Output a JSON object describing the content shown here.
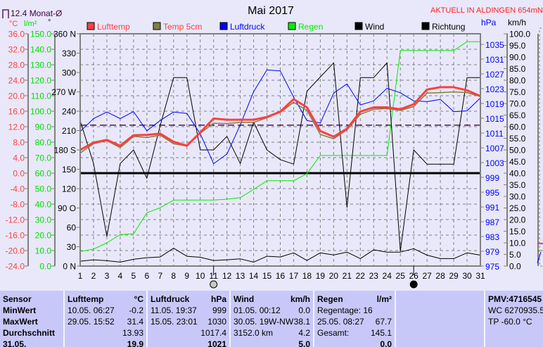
{
  "header": {
    "title": "Mai 2017",
    "location": "AKTUELL IN ALDINGEN 654mNN",
    "month_avg_label": "12.4 Monat-Ø"
  },
  "colors": {
    "lufttemp": "#ff4040",
    "temp5cm": "#808040",
    "luftdruck": "#0000ff",
    "regen": "#00ee00",
    "wind": "#000000",
    "richtung": "#000000",
    "avg_line": "#500040",
    "grid": "#808080"
  },
  "chart_data": {
    "type": "line",
    "title": "Mai 2017",
    "x": [
      1,
      2,
      3,
      4,
      5,
      6,
      7,
      8,
      9,
      10,
      11,
      12,
      13,
      14,
      15,
      16,
      17,
      18,
      19,
      20,
      21,
      22,
      23,
      24,
      25,
      26,
      27,
      28,
      29,
      30,
      31
    ],
    "x_tick_labels": [
      "1",
      "2",
      "3",
      "4",
      "5",
      "6",
      "7",
      "8",
      "9",
      "10",
      "11",
      "12",
      "13",
      "14",
      "15",
      "16",
      "17",
      "18",
      "19",
      "20",
      "21",
      "22",
      "23",
      "24",
      "25",
      "26",
      "27",
      "28",
      "29",
      "30",
      "31"
    ],
    "legend": [
      "Lufttemp",
      "Temp 5cm",
      "Luftdruck",
      "Regen",
      "Wind",
      "Richtung"
    ],
    "axes": {
      "temp": {
        "unit": "°C",
        "range": [
          -24,
          36
        ],
        "ticks": [
          "36.0",
          "32.0",
          "28.0",
          "24.0",
          "20.0",
          "16.0",
          "12.0",
          "8.0",
          "4.0",
          "0.0",
          "-4.0",
          "-8.0",
          "-12.0",
          "-16.0",
          "-20.0",
          "-24.0"
        ]
      },
      "rain": {
        "unit": "l/m²",
        "range": [
          0,
          150
        ],
        "ticks": [
          "150.0",
          "140.0",
          "130.0",
          "120.0",
          "110.0",
          "100.0",
          "90.0",
          "80.0",
          "70.0",
          "60.0",
          "50.0",
          "40.0",
          "30.0",
          "20.0",
          "10.0",
          "0.0"
        ]
      },
      "direction": {
        "unit": "°",
        "range": [
          0,
          360
        ],
        "ticks": [
          "360 N",
          "330",
          "300",
          "270 W",
          "240",
          "210",
          "180 S",
          "150",
          "120",
          "90 O",
          "60",
          "30",
          "0 N"
        ]
      },
      "pressure": {
        "unit": "hPa",
        "ticks": [
          "1035",
          "1031",
          "1027",
          "1023",
          "1019",
          "1015",
          "1011",
          "1007",
          "1003",
          "999",
          "995",
          "991",
          "987",
          "983",
          "979",
          "975"
        ]
      },
      "wind": {
        "unit": "km/h",
        "range": [
          0,
          100
        ],
        "ticks": [
          "100.0",
          "95.0",
          "90.0",
          "85.0",
          "80.0",
          "75.0",
          "70.0",
          "65.0",
          "60.0",
          "55.0",
          "50.0",
          "45.0",
          "40.0",
          "35.0",
          "30.0",
          "25.0",
          "20.0",
          "15.0",
          "10.0",
          "5.0",
          "0.0"
        ]
      }
    },
    "month_avg_temp": 12.4,
    "series": [
      {
        "name": "Lufttemp",
        "axis": "temp",
        "values": [
          6.0,
          7.9,
          8.6,
          7.1,
          9.8,
          9.9,
          10.2,
          8.1,
          7.1,
          10.5,
          14.1,
          13.8,
          13.8,
          13.8,
          14.5,
          15.9,
          19.1,
          17.0,
          10.9,
          9.4,
          11.5,
          15.9,
          17.0,
          17.0,
          16.5,
          17.8,
          21.6,
          22.2,
          22.2,
          21.4,
          19.9
        ]
      },
      {
        "name": "Temp 5cm",
        "axis": "temp",
        "values": [
          5.2,
          7.6,
          8.4,
          6.6,
          9.5,
          9.2,
          9.8,
          7.6,
          7.0,
          10.3,
          12.9,
          12.8,
          13.1,
          13.1,
          14.3,
          15.7,
          18.3,
          16.2,
          10.0,
          8.9,
          11.2,
          15.2,
          16.5,
          16.7,
          16.2,
          17.2,
          20.7,
          20.8,
          21.0,
          20.8,
          19.8
        ]
      },
      {
        "name": "Luftdruck",
        "axis": "pressure",
        "values": [
          1011.4,
          1014.9,
          1016.7,
          1014.9,
          1016.8,
          1011.6,
          1014.4,
          1016.7,
          1016.3,
          1010.8,
          1002.7,
          1005.3,
          1013.2,
          1022.2,
          1028.1,
          1027.8,
          1020.7,
          1014.4,
          1013.7,
          1021.8,
          1024.3,
          1018.6,
          1019.7,
          1023.1,
          1021.9,
          1019.7,
          1019.5,
          1020.1,
          1016.8,
          1017.0,
          1020.5
        ]
      },
      {
        "name": "Regen",
        "axis": "rain",
        "values": [
          9.4,
          10.9,
          15.0,
          20.3,
          20.8,
          34.4,
          37.7,
          42.6,
          42.6,
          42.6,
          42.6,
          43.2,
          44.2,
          49.5,
          55.1,
          55.1,
          55.1,
          59.7,
          71.4,
          71.4,
          71.4,
          71.4,
          71.4,
          71.4,
          139.2,
          139.2,
          139.2,
          139.2,
          139.2,
          144.9,
          144.9
        ]
      },
      {
        "name": "Wind",
        "axis": "wind",
        "values": [
          2.1,
          2.7,
          2.3,
          1.7,
          2.9,
          3.6,
          3.9,
          7.7,
          4.2,
          3.8,
          2.4,
          2.7,
          3.1,
          1.7,
          4.2,
          3.9,
          5.7,
          2.4,
          5.7,
          4.8,
          6.0,
          3.2,
          7.0,
          6.0,
          6.0,
          7.5,
          4.7,
          3.2,
          3.2,
          5.7,
          4.7
        ]
      },
      {
        "name": "Richtung",
        "axis": "direction",
        "values": [
          225,
          159,
          46,
          159,
          180,
          136,
          218,
          292,
          292,
          180,
          180,
          201,
          159,
          223,
          180,
          165,
          158,
          271,
          293,
          315,
          91,
          292,
          292,
          315,
          23,
          180,
          158,
          158,
          158,
          292,
          292
        ]
      }
    ],
    "moon_phases": [
      {
        "day": 11,
        "phase": "full-moon"
      },
      {
        "day": 26,
        "phase": "new-moon"
      }
    ],
    "grid": true
  },
  "stats": {
    "sensor": {
      "header": "Sensor",
      "rows": [
        "MinWert",
        "MaxWert",
        "Durchschnitt",
        "31.05."
      ]
    },
    "lufttemp": {
      "header": "Lufttemp",
      "unit": "°C",
      "min_time": "10.05.  06:27",
      "min": "-0.2",
      "max_time": "29.05.  15:52",
      "max": "31.4",
      "avg": "13.93",
      "last": "19.9"
    },
    "luftdruck": {
      "header": "Luftdruck",
      "unit": "hPa",
      "min_time": "11.05.  19:37",
      "min": "999",
      "max_time": "15.05.  23:01",
      "max": "1030",
      "avg": "1017.4",
      "last": "1021"
    },
    "wind": {
      "header": "Wind",
      "unit": "km/h",
      "min_time": "01.05.  00:12",
      "min": "0.0",
      "max_time": "30.05.  19W-NW",
      "max": "38.1",
      "avg_text": "3152.0 km",
      "avg": "4.2",
      "last": "5.0"
    },
    "regen": {
      "header": "Regen",
      "unit": "l/m²",
      "days": "Regentage: 16",
      "max_time": "25.05.  08:27",
      "max": "67.7",
      "total_label": "Gesamt:",
      "total": "145.1",
      "last": "0.0"
    },
    "extra": {
      "pmv": "PMV:4716545",
      "wc": "WC 6270935.5 °",
      "tp": "TP -60.0 °C"
    }
  }
}
